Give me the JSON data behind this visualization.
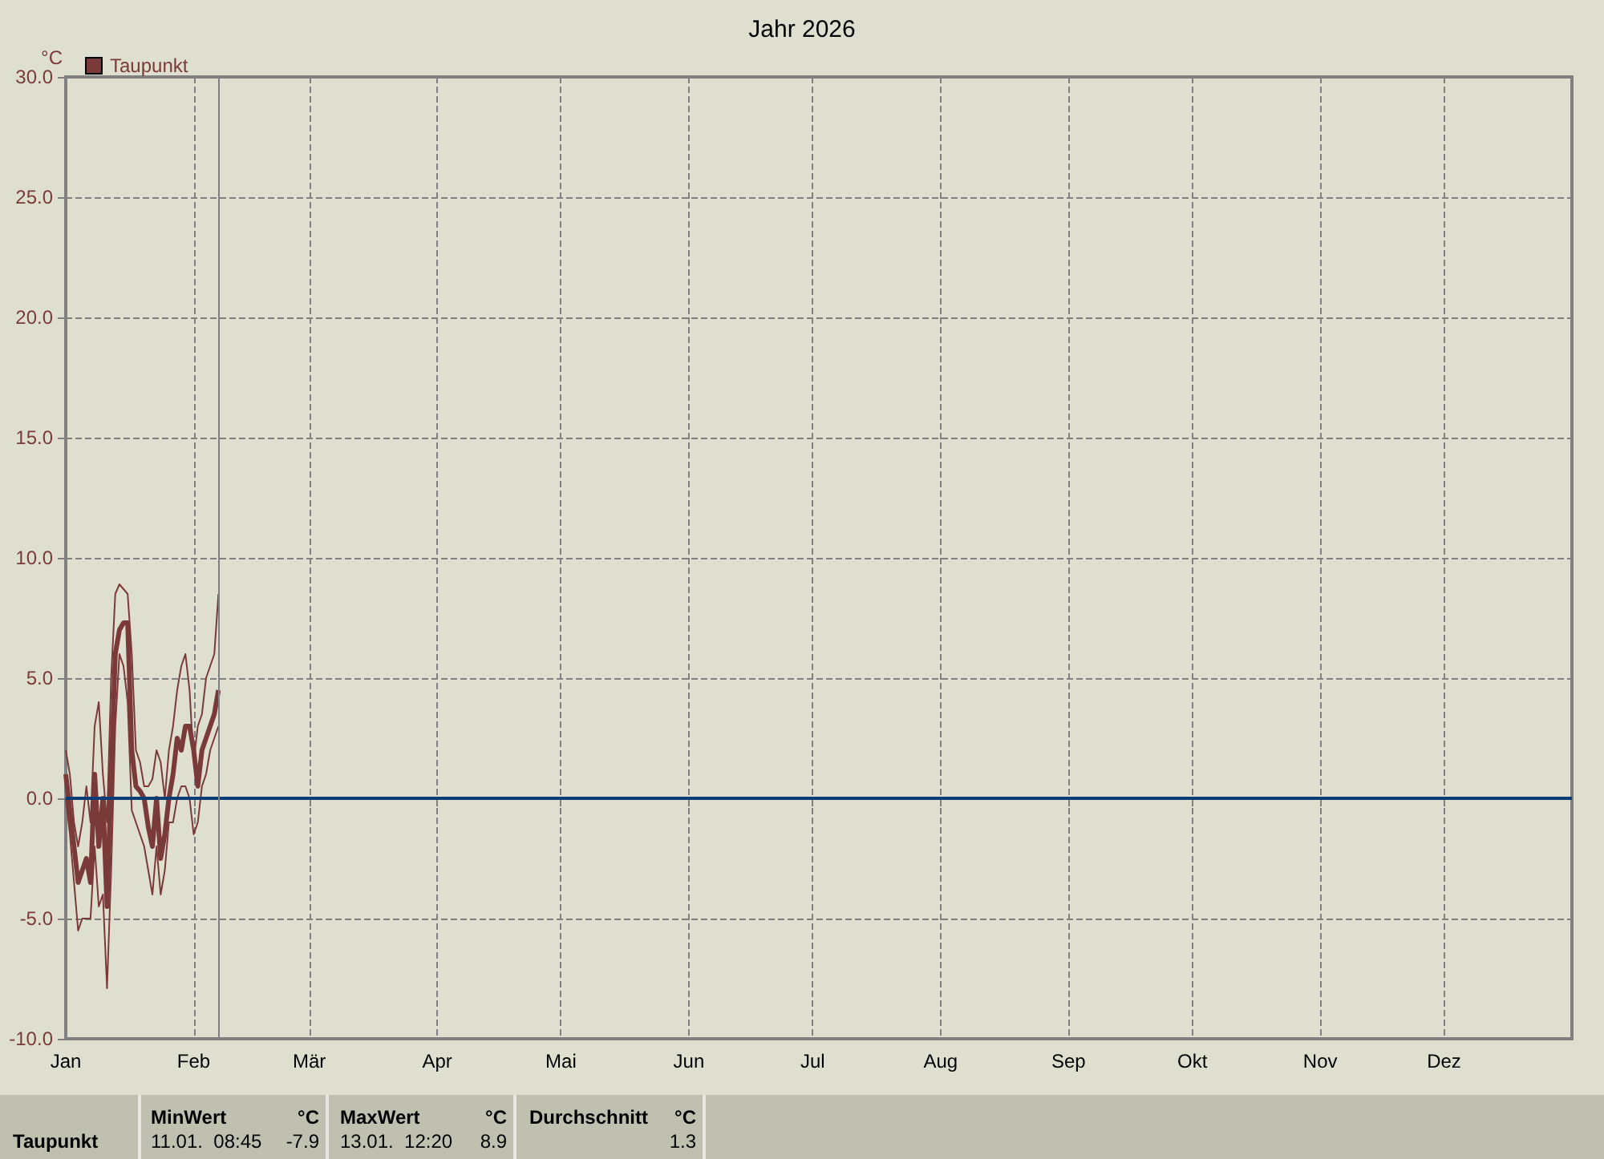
{
  "chart_data": {
    "type": "line",
    "title": "Jahr 2026",
    "ylabel": "°C",
    "x": [
      "2026-01-01",
      "2026-01-02",
      "2026-01-03",
      "2026-01-04",
      "2026-01-05",
      "2026-01-06",
      "2026-01-07",
      "2026-01-08",
      "2026-01-09",
      "2026-01-10",
      "2026-01-11",
      "2026-01-12",
      "2026-01-13",
      "2026-01-14",
      "2026-01-15",
      "2026-01-16",
      "2026-01-17",
      "2026-01-18",
      "2026-01-19",
      "2026-01-20",
      "2026-01-21",
      "2026-01-22",
      "2026-01-23",
      "2026-01-24",
      "2026-01-25",
      "2026-01-26",
      "2026-01-27",
      "2026-01-28",
      "2026-01-29",
      "2026-01-30",
      "2026-01-31",
      "2026-02-01",
      "2026-02-02",
      "2026-02-03",
      "2026-02-04",
      "2026-02-05",
      "2026-02-06",
      "2026-02-07"
    ],
    "series": [
      {
        "color": "#7b3a3a",
        "values": [
          2,
          1,
          -1,
          -2,
          -1,
          0.5,
          -1,
          3,
          4,
          1,
          -1,
          5,
          8.5,
          8.9,
          8.7,
          8.5,
          6,
          2,
          1.5,
          0.5,
          0.5,
          0.8,
          2,
          1.5,
          0,
          2,
          3,
          4.5,
          5.5,
          6,
          4.5,
          1.5,
          3,
          3.5,
          5,
          5.5,
          6,
          8.5
        ]
      },
      {
        "name": "Taupunkt",
        "color": "#7b3a3a",
        "values": [
          1,
          -0.5,
          -2,
          -3.5,
          -3,
          -2.5,
          -3.5,
          1,
          -2,
          0,
          -4.5,
          1,
          6,
          7,
          7.3,
          7.3,
          2,
          0.5,
          0.3,
          0,
          -1.2,
          -2,
          0,
          -2.5,
          -1.5,
          0,
          1,
          2.5,
          2,
          3,
          3,
          2,
          0.5,
          2,
          2.5,
          3,
          3.5,
          4.5
        ]
      },
      {
        "color": "#7b3a3a",
        "values": [
          0,
          -1.5,
          -3.5,
          -5.5,
          -5,
          -5,
          -5,
          -2,
          -4.5,
          -4,
          -7.9,
          -3,
          3,
          6,
          5.5,
          4,
          -0.5,
          -1,
          -1.5,
          -2,
          -3,
          -4,
          -2,
          -4,
          -3,
          -1,
          -1,
          0,
          0.5,
          0.5,
          0,
          -1.5,
          -1,
          0.5,
          1,
          2,
          2.5,
          3
        ]
      }
    ],
    "xlim": [
      "2026-01-01",
      "2027-01-01"
    ],
    "xticks": [
      {
        "value": "2026-01-01",
        "label": "Jan"
      },
      {
        "value": "2026-02-01",
        "label": "Feb"
      },
      {
        "value": "2026-03-01",
        "label": "Mär"
      },
      {
        "value": "2026-04-01",
        "label": "Apr"
      },
      {
        "value": "2026-05-01",
        "label": "Mai"
      },
      {
        "value": "2026-06-01",
        "label": "Jun"
      },
      {
        "value": "2026-07-01",
        "label": "Jul"
      },
      {
        "value": "2026-08-01",
        "label": "Aug"
      },
      {
        "value": "2026-09-01",
        "label": "Sep"
      },
      {
        "value": "2026-10-01",
        "label": "Okt"
      },
      {
        "value": "2026-11-01",
        "label": "Nov"
      },
      {
        "value": "2026-12-01",
        "label": "Dez"
      }
    ],
    "ylim": [
      -10,
      30
    ],
    "yticks": [
      {
        "value": -10,
        "label": "-10.0"
      },
      {
        "value": -5,
        "label": "-5.0"
      },
      {
        "value": 0,
        "label": "0.0"
      },
      {
        "value": 5,
        "label": "5.0"
      },
      {
        "value": 10,
        "label": "10.0"
      },
      {
        "value": 15,
        "label": "15.0"
      },
      {
        "value": 20,
        "label": "20.0"
      },
      {
        "value": 25,
        "label": "25.0"
      },
      {
        "value": 30,
        "label": "30.0"
      }
    ],
    "grid": true,
    "legend": "top left",
    "marker": "none",
    "line_style": "solid",
    "ref_lines": [
      {
        "axis": "y",
        "value": 0,
        "color": "#0a3c78"
      },
      {
        "axis": "x",
        "value": "2026-02-07",
        "color": "#808080"
      }
    ],
    "annotations": [
      "Taupunkt",
      "MinWert",
      "°C",
      "11.01.  08:45",
      "-7.9",
      "MaxWert",
      "°C",
      "13.01.  12:20",
      "8.9",
      "Durchschnitt",
      "°C",
      "1.3"
    ]
  }
}
